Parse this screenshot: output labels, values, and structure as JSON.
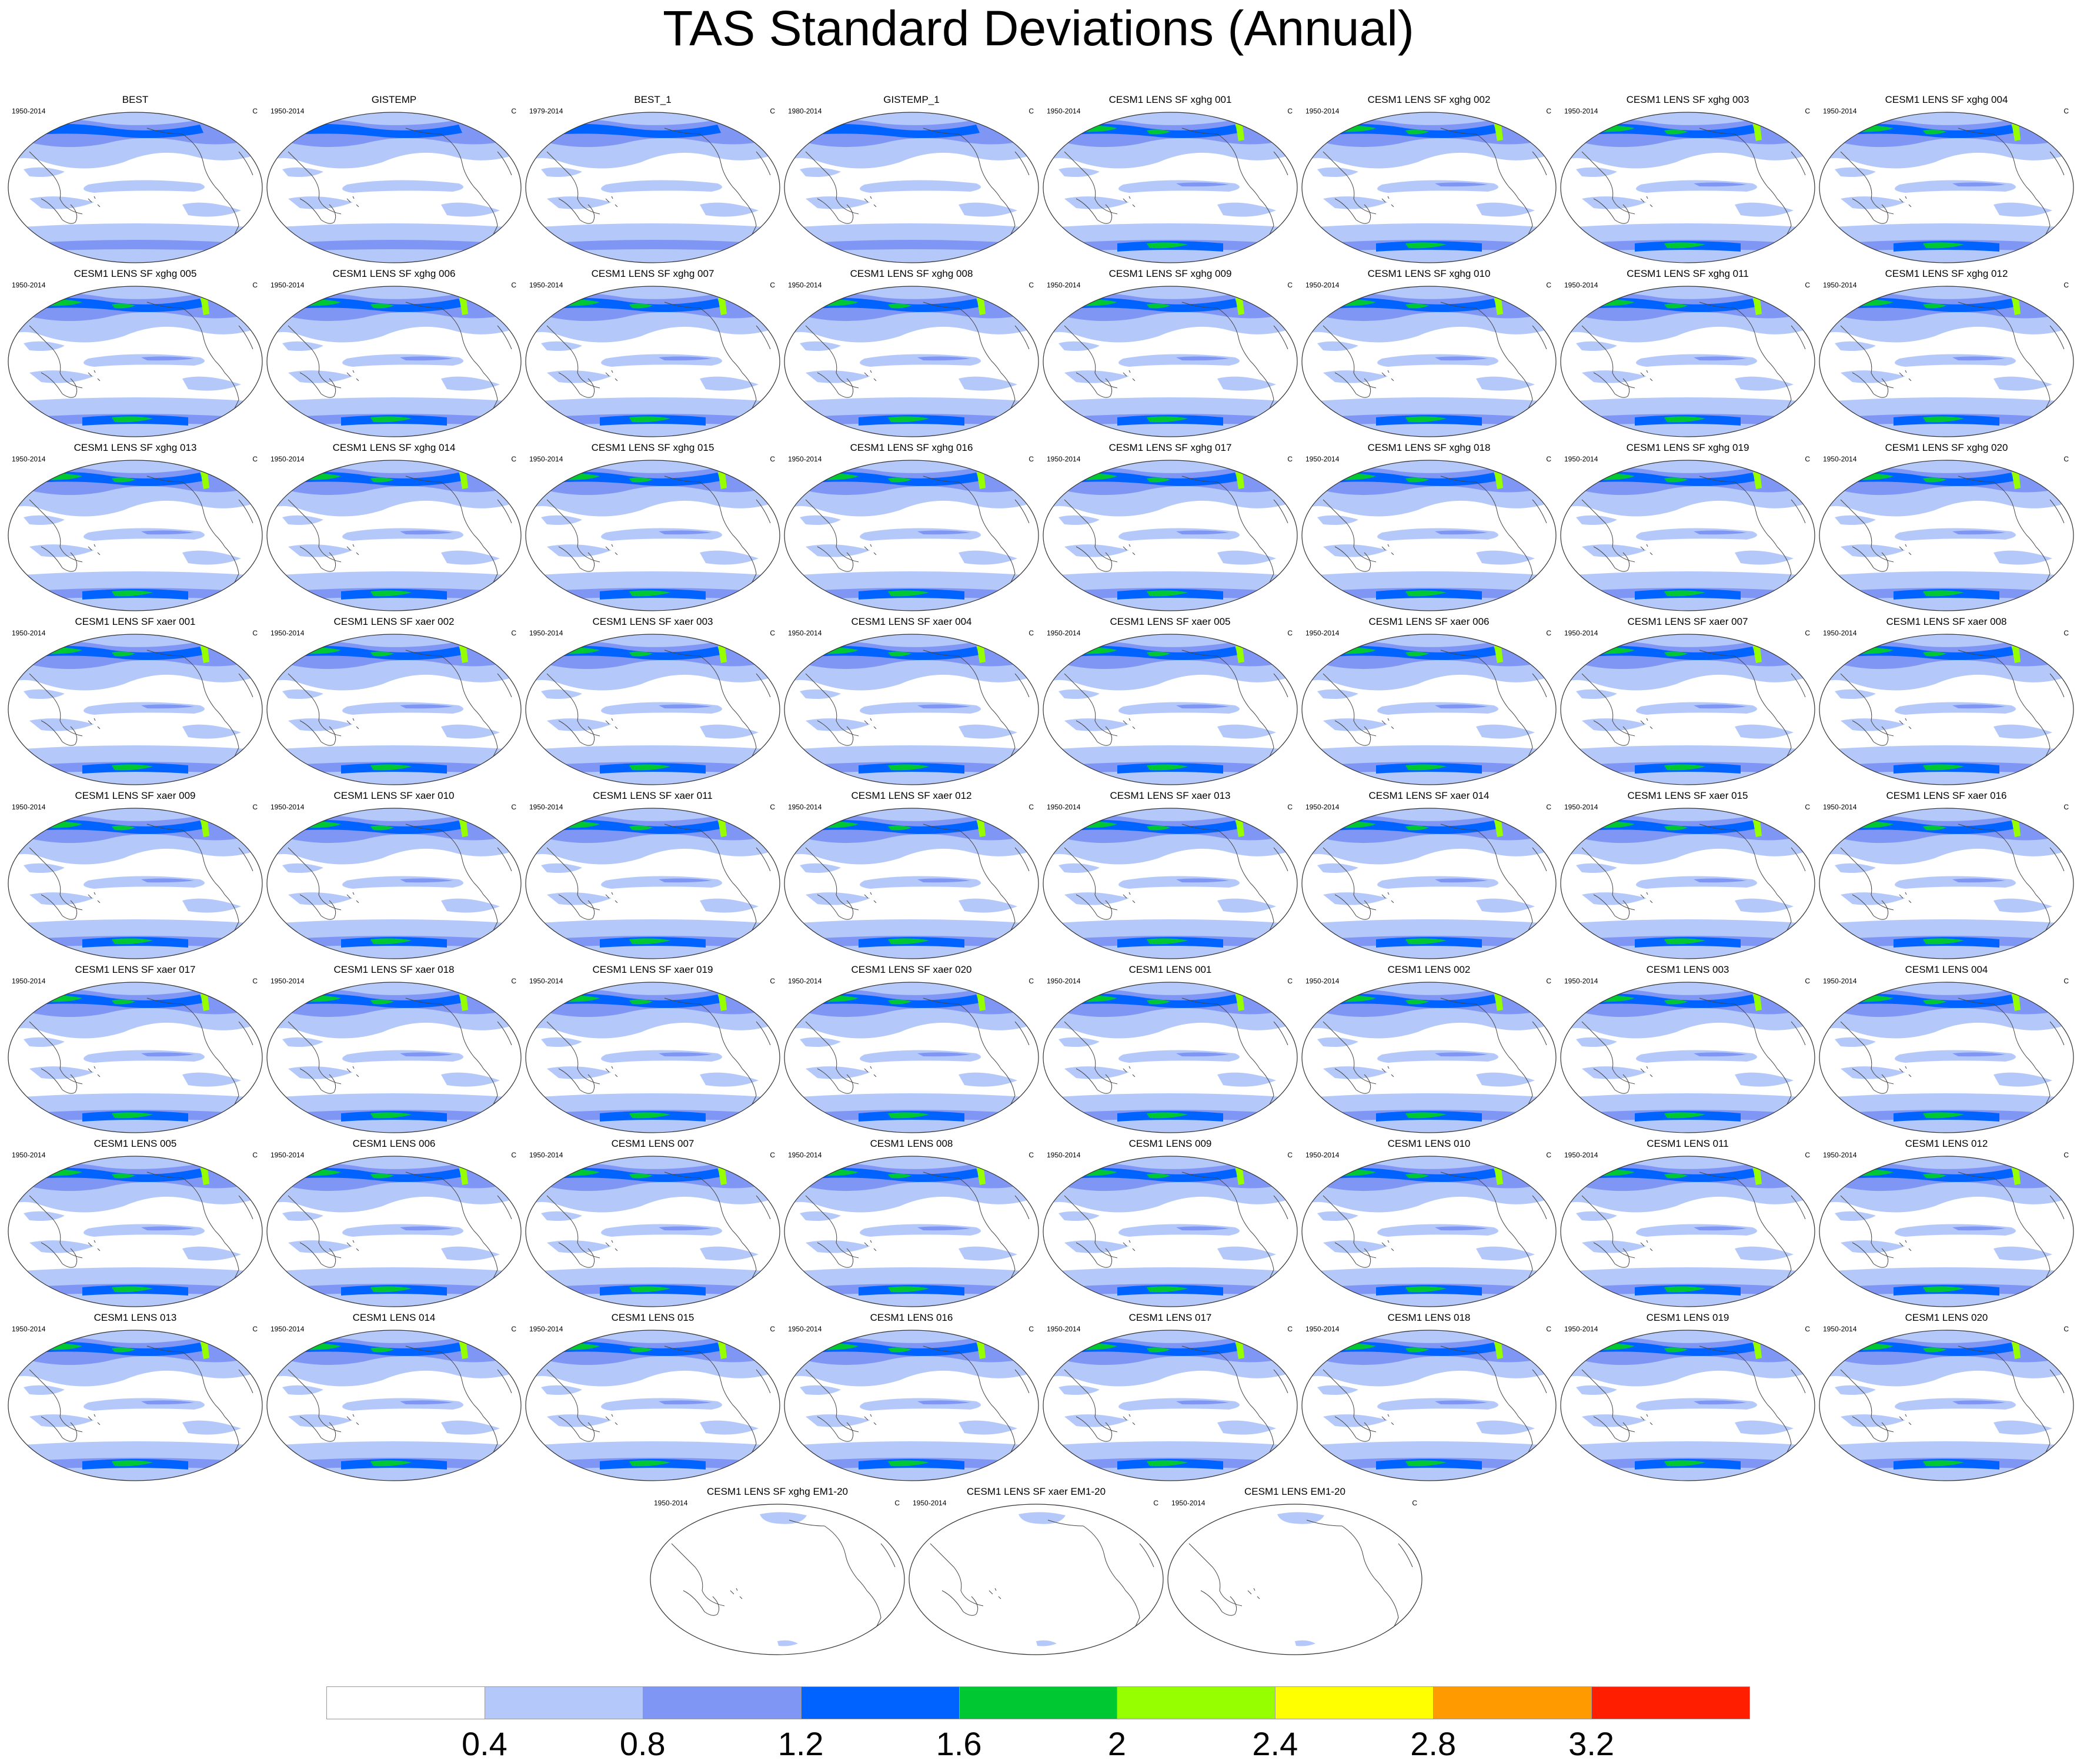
{
  "title": "TAS Standard Deviations (Annual)",
  "unit_label": "C",
  "icons": {
    "map": "world-map-icon"
  },
  "panels": [
    {
      "title": "BEST",
      "years": "1950-2014",
      "kind": "obs"
    },
    {
      "title": "GISTEMP",
      "years": "1950-2014",
      "kind": "obs"
    },
    {
      "title": "BEST_1",
      "years": "1979-2014",
      "kind": "obs"
    },
    {
      "title": "GISTEMP_1",
      "years": "1980-2014",
      "kind": "obs"
    },
    {
      "title": "CESM1 LENS SF xghg 001",
      "years": "1950-2014",
      "kind": "model"
    },
    {
      "title": "CESM1 LENS SF xghg 002",
      "years": "1950-2014",
      "kind": "model"
    },
    {
      "title": "CESM1 LENS SF xghg 003",
      "years": "1950-2014",
      "kind": "model"
    },
    {
      "title": "CESM1 LENS SF xghg 004",
      "years": "1950-2014",
      "kind": "model"
    },
    {
      "title": "CESM1 LENS SF xghg 005",
      "years": "1950-2014",
      "kind": "model"
    },
    {
      "title": "CESM1 LENS SF xghg 006",
      "years": "1950-2014",
      "kind": "model"
    },
    {
      "title": "CESM1 LENS SF xghg 007",
      "years": "1950-2014",
      "kind": "model"
    },
    {
      "title": "CESM1 LENS SF xghg 008",
      "years": "1950-2014",
      "kind": "model"
    },
    {
      "title": "CESM1 LENS SF xghg 009",
      "years": "1950-2014",
      "kind": "model"
    },
    {
      "title": "CESM1 LENS SF xghg 010",
      "years": "1950-2014",
      "kind": "model"
    },
    {
      "title": "CESM1 LENS SF xghg 011",
      "years": "1950-2014",
      "kind": "model"
    },
    {
      "title": "CESM1 LENS SF xghg 012",
      "years": "1950-2014",
      "kind": "model"
    },
    {
      "title": "CESM1 LENS SF xghg 013",
      "years": "1950-2014",
      "kind": "model"
    },
    {
      "title": "CESM1 LENS SF xghg 014",
      "years": "1950-2014",
      "kind": "model"
    },
    {
      "title": "CESM1 LENS SF xghg 015",
      "years": "1950-2014",
      "kind": "model"
    },
    {
      "title": "CESM1 LENS SF xghg 016",
      "years": "1950-2014",
      "kind": "model"
    },
    {
      "title": "CESM1 LENS SF xghg 017",
      "years": "1950-2014",
      "kind": "model"
    },
    {
      "title": "CESM1 LENS SF xghg 018",
      "years": "1950-2014",
      "kind": "model"
    },
    {
      "title": "CESM1 LENS SF xghg 019",
      "years": "1950-2014",
      "kind": "model"
    },
    {
      "title": "CESM1 LENS SF xghg 020",
      "years": "1950-2014",
      "kind": "model"
    },
    {
      "title": "CESM1 LENS SF xaer 001",
      "years": "1950-2014",
      "kind": "model"
    },
    {
      "title": "CESM1 LENS SF xaer 002",
      "years": "1950-2014",
      "kind": "model"
    },
    {
      "title": "CESM1 LENS SF xaer 003",
      "years": "1950-2014",
      "kind": "model"
    },
    {
      "title": "CESM1 LENS SF xaer 004",
      "years": "1950-2014",
      "kind": "model"
    },
    {
      "title": "CESM1 LENS SF xaer 005",
      "years": "1950-2014",
      "kind": "model"
    },
    {
      "title": "CESM1 LENS SF xaer 006",
      "years": "1950-2014",
      "kind": "model"
    },
    {
      "title": "CESM1 LENS SF xaer 007",
      "years": "1950-2014",
      "kind": "model"
    },
    {
      "title": "CESM1 LENS SF xaer 008",
      "years": "1950-2014",
      "kind": "model"
    },
    {
      "title": "CESM1 LENS SF xaer 009",
      "years": "1950-2014",
      "kind": "model"
    },
    {
      "title": "CESM1 LENS SF xaer 010",
      "years": "1950-2014",
      "kind": "model"
    },
    {
      "title": "CESM1 LENS SF xaer 011",
      "years": "1950-2014",
      "kind": "model"
    },
    {
      "title": "CESM1 LENS SF xaer 012",
      "years": "1950-2014",
      "kind": "model"
    },
    {
      "title": "CESM1 LENS SF xaer 013",
      "years": "1950-2014",
      "kind": "model"
    },
    {
      "title": "CESM1 LENS SF xaer 014",
      "years": "1950-2014",
      "kind": "model"
    },
    {
      "title": "CESM1 LENS SF xaer 015",
      "years": "1950-2014",
      "kind": "model"
    },
    {
      "title": "CESM1 LENS SF xaer 016",
      "years": "1950-2014",
      "kind": "model"
    },
    {
      "title": "CESM1 LENS SF xaer 017",
      "years": "1950-2014",
      "kind": "model"
    },
    {
      "title": "CESM1 LENS SF xaer 018",
      "years": "1950-2014",
      "kind": "model"
    },
    {
      "title": "CESM1 LENS SF xaer 019",
      "years": "1950-2014",
      "kind": "model"
    },
    {
      "title": "CESM1 LENS SF xaer 020",
      "years": "1950-2014",
      "kind": "model"
    },
    {
      "title": "CESM1 LENS 001",
      "years": "1950-2014",
      "kind": "model"
    },
    {
      "title": "CESM1 LENS 002",
      "years": "1950-2014",
      "kind": "model"
    },
    {
      "title": "CESM1 LENS 003",
      "years": "1950-2014",
      "kind": "model"
    },
    {
      "title": "CESM1 LENS 004",
      "years": "1950-2014",
      "kind": "model"
    },
    {
      "title": "CESM1 LENS 005",
      "years": "1950-2014",
      "kind": "model"
    },
    {
      "title": "CESM1 LENS 006",
      "years": "1950-2014",
      "kind": "model"
    },
    {
      "title": "CESM1 LENS 007",
      "years": "1950-2014",
      "kind": "model"
    },
    {
      "title": "CESM1 LENS 008",
      "years": "1950-2014",
      "kind": "model"
    },
    {
      "title": "CESM1 LENS 009",
      "years": "1950-2014",
      "kind": "model"
    },
    {
      "title": "CESM1 LENS 010",
      "years": "1950-2014",
      "kind": "model"
    },
    {
      "title": "CESM1 LENS 011",
      "years": "1950-2014",
      "kind": "model"
    },
    {
      "title": "CESM1 LENS 012",
      "years": "1950-2014",
      "kind": "model"
    },
    {
      "title": "CESM1 LENS 013",
      "years": "1950-2014",
      "kind": "model"
    },
    {
      "title": "CESM1 LENS 014",
      "years": "1950-2014",
      "kind": "model"
    },
    {
      "title": "CESM1 LENS 015",
      "years": "1950-2014",
      "kind": "model"
    },
    {
      "title": "CESM1 LENS 016",
      "years": "1950-2014",
      "kind": "model"
    },
    {
      "title": "CESM1 LENS 017",
      "years": "1950-2014",
      "kind": "model"
    },
    {
      "title": "CESM1 LENS 018",
      "years": "1950-2014",
      "kind": "model"
    },
    {
      "title": "CESM1 LENS 019",
      "years": "1950-2014",
      "kind": "model"
    },
    {
      "title": "CESM1 LENS 020",
      "years": "1950-2014",
      "kind": "model"
    },
    {
      "title": "CESM1 LENS SF xghg EM1-20",
      "years": "1950-2014",
      "kind": "ensmean"
    },
    {
      "title": "CESM1 LENS SF xaer EM1-20",
      "years": "1950-2014",
      "kind": "ensmean"
    },
    {
      "title": "CESM1 LENS EM1-20",
      "years": "1950-2014",
      "kind": "ensmean"
    }
  ],
  "colorbar": {
    "colors": [
      "#ffffff",
      "#b4c8fa",
      "#7f96f5",
      "#0062ff",
      "#00c832",
      "#96ff00",
      "#ffff00",
      "#ff9b00",
      "#ff1e00"
    ],
    "labels": [
      "0.4",
      "0.8",
      "1.2",
      "1.6",
      "2",
      "2.4",
      "2.8",
      "3.2"
    ]
  }
}
